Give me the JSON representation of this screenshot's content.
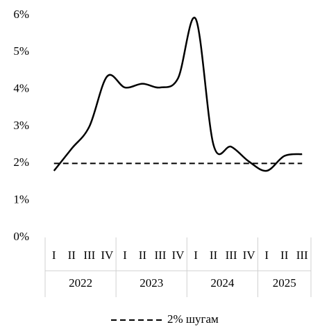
{
  "chart_data": {
    "type": "line",
    "categories": [
      "I",
      "II",
      "III",
      "IV",
      "I",
      "II",
      "III",
      "IV",
      "I",
      "II",
      "III",
      "IV",
      "I",
      "II",
      "III"
    ],
    "category_groups": [
      "2022",
      "2023",
      "2024",
      "2025"
    ],
    "series": [
      {
        "color": "#000000",
        "values": [
          1.8,
          2.4,
          3.0,
          4.35,
          4.05,
          4.15,
          4.05,
          4.3,
          5.9,
          2.5,
          2.45,
          2.05,
          1.8,
          2.2,
          2.25
        ]
      },
      {
        "name": "2% шугам",
        "color": "#000000",
        "dashed": true,
        "values": [
          2,
          2,
          2,
          2,
          2,
          2,
          2,
          2,
          2,
          2,
          2,
          2,
          2,
          2,
          2
        ]
      }
    ],
    "ylim": [
      0,
      6
    ],
    "yticks": [
      {
        "value": 0,
        "label": "0%"
      },
      {
        "value": 1,
        "label": "1%"
      },
      {
        "value": 2,
        "label": "2%"
      },
      {
        "value": 3,
        "label": "3%"
      },
      {
        "value": 4,
        "label": "4%"
      },
      {
        "value": 5,
        "label": "5%"
      },
      {
        "value": 6,
        "label": "6%"
      }
    ],
    "legend": "bottom"
  }
}
